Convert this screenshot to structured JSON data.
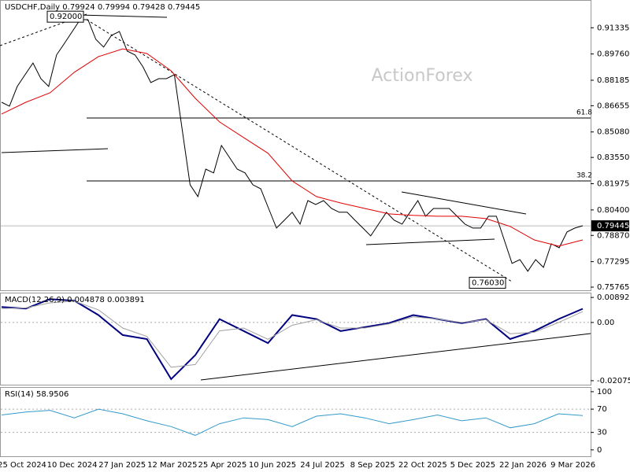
{
  "chart_data": [
    {
      "type": "line",
      "title": "USDCHF,Daily 0.79924 0.79994 0.79428 0.79445",
      "watermark": "ActionForex",
      "ylim": [
        0.7553,
        0.93
      ],
      "yticks": [
        0.91335,
        {
          "value": 0.8976,
          "label": "0.89760"
        },
        0.88185,
        0.86655,
        {
          "value": 0.8508,
          "label": "0.85080"
        },
        {
          "value": 0.8355,
          "label": "0.83550"
        },
        0.81975,
        {
          "value": 0.804,
          "label": "0.80400"
        },
        {
          "value": 0.7887,
          "label": "0.78870"
        },
        0.77295,
        0.75765
      ],
      "xtick_labels": [
        "25 Oct 2024",
        "10 Dec 2024",
        "27 Jan 2025",
        "12 Mar 2025",
        "25 Apr 2025",
        "10 Jun 2025",
        "24 Jul 2025",
        "8 Sep 2025",
        "22 Oct 2025",
        "5 Dec 2025",
        "22 Jan 2026",
        "9 Mar 2026"
      ],
      "last_price": 0.79445,
      "annotations": [
        {
          "value": 0.92,
          "label": "0.92000"
        },
        {
          "value": 0.7603,
          "label": "0.76030"
        }
      ],
      "fib_levels": [
        {
          "label": "61.8",
          "value": 0.8592
        },
        {
          "label": "38.2",
          "value": 0.8214
        }
      ],
      "series": [
        {
          "color": "#000000",
          "values": [
            0.8686,
            0.8663,
            0.8781,
            0.8852,
            0.8922,
            0.8828,
            0.8781,
            0.897,
            0.904,
            0.9111,
            0.9182,
            0.9182,
            0.9064,
            0.9017,
            0.9088,
            0.9111,
            0.8993,
            0.897,
            0.8899,
            0.8804,
            0.8828,
            0.8828,
            0.8852,
            0.8521,
            0.8191,
            0.812,
            0.8285,
            0.8262,
            0.8427,
            0.8356,
            0.8285,
            0.8262,
            0.8191,
            0.8167,
            0.8049,
            0.7931,
            0.7978,
            0.8026,
            0.7955,
            0.8096,
            0.8073,
            0.8096,
            0.8049,
            0.8026,
            0.8026,
            0.7978,
            0.7931,
            0.7884,
            0.7955,
            0.8026,
            0.7978,
            0.7955,
            0.8026,
            0.8096,
            0.8002,
            0.8049,
            0.8049,
            0.8049,
            0.8002,
            0.7955,
            0.7931,
            0.7931,
            0.8002,
            0.8002,
            0.786,
            0.7719,
            0.7742,
            0.7672,
            0.7742,
            0.7695,
            0.7837,
            0.7813,
            0.7908,
            0.7931,
            0.7945
          ]
        },
        {
          "color": "#e00000",
          "values": [
            0.8616,
            0.8686,
            0.8743,
            0.8866,
            0.896,
            0.9007,
            0.8979,
            0.8875,
            0.871,
            0.8568,
            0.8474,
            0.838,
            0.8214,
            0.812,
            0.8082,
            0.8049,
            0.8016,
            0.8007,
            0.8002,
            0.8002,
            0.7988,
            0.7941,
            0.786,
            0.7823,
            0.786
          ]
        }
      ]
    },
    {
      "type": "line",
      "title": "MACD(12,26,9) 0.004878 0.003891",
      "ylim": [
        -0.02247,
        0.01064
      ],
      "yticks": [
        0.008923,
        {
          "value": 0,
          "label": "0.00"
        },
        -0.020759
      ],
      "levels": [
        0
      ],
      "series": [
        {
          "color": "#000080",
          "values": [
            0.0055,
            0.00493,
            0.00835,
            0.00778,
            0.00264,
            -0.00449,
            -0.00592,
            -0.02019,
            -0.01163,
            0.00122,
            -0.00306,
            -0.00734,
            0.00264,
            0.00122,
            -0.00306,
            -0.00164,
            -0.00021,
            0.00264,
            0.00122,
            -0.00021,
            0.00122,
            -0.00592,
            -0.00306,
            0.00122,
            0.00488
          ]
        },
        {
          "color": "#a0a0a0",
          "values": [
            0.005,
            0.0052,
            0.007,
            0.0076,
            0.0045,
            -0.002,
            -0.005,
            -0.016,
            -0.015,
            -0.003,
            -0.002,
            -0.006,
            -0.001,
            0.001,
            -0.002,
            -0.002,
            -0.0005,
            0.002,
            0.0012,
            0,
            0.001,
            -0.004,
            -0.0035,
            0,
            0.00389
          ]
        }
      ]
    },
    {
      "type": "line",
      "title": "RSI(14) 58.9506",
      "ylim": [
        -11,
        108
      ],
      "yticks": [
        100,
        70,
        30,
        0
      ],
      "levels": [
        70,
        30
      ],
      "series": [
        {
          "color": "#3399cc",
          "values": [
            60,
            65,
            68,
            55,
            70,
            62,
            50,
            40,
            25,
            45,
            55,
            52,
            40,
            58,
            62,
            55,
            45,
            52,
            60,
            50,
            55,
            38,
            45,
            62,
            59
          ]
        }
      ]
    }
  ]
}
